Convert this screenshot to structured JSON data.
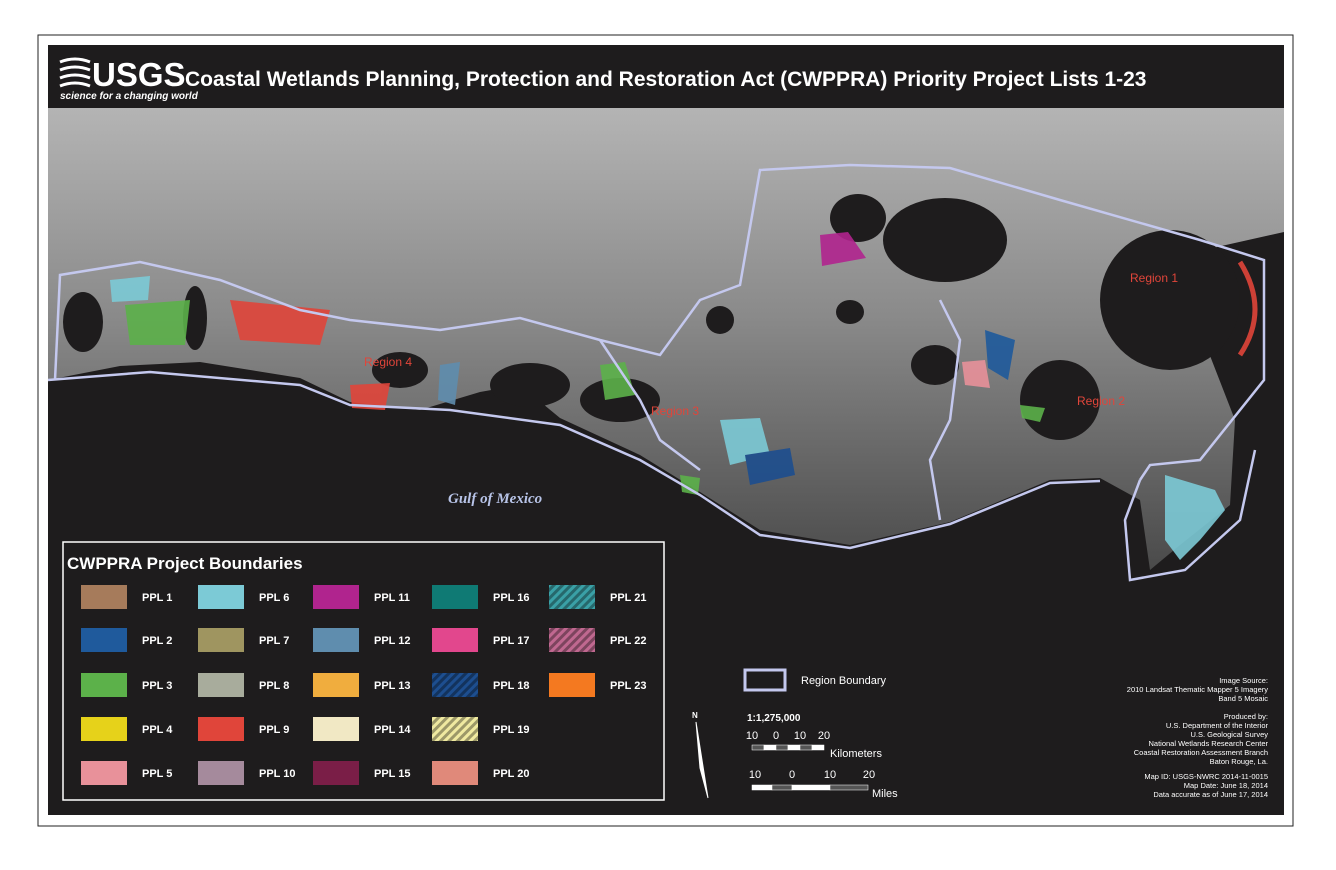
{
  "header": {
    "logo": "USGS",
    "tagline": "science for a changing world",
    "title": "Coastal Wetlands Planning,  Protection and Restoration Act (CWPPRA) Priority Project Lists 1-23"
  },
  "map_labels": {
    "region_1": "Region 1",
    "region_2": "Region 2",
    "region_3": "Region 3",
    "region_4": "Region 4",
    "gulf": "Gulf of Mexico"
  },
  "legend": {
    "title": "CWPPRA Project Boundaries",
    "items": [
      {
        "label": "PPL 1",
        "color": "#a67b5b"
      },
      {
        "label": "PPL 2",
        "color": "#1f5a9c"
      },
      {
        "label": "PPL 3",
        "color": "#5cb14a"
      },
      {
        "label": "PPL 4",
        "color": "#e6d21a"
      },
      {
        "label": "PPL 5",
        "color": "#e8919a"
      },
      {
        "label": "PPL 6",
        "color": "#7ccad6"
      },
      {
        "label": "PPL 7",
        "color": "#9f9560"
      },
      {
        "label": "PPL 8",
        "color": "#a8ac9c"
      },
      {
        "label": "PPL 9",
        "color": "#e0453a"
      },
      {
        "label": "PPL 10",
        "color": "#a58a9c"
      },
      {
        "label": "PPL 11",
        "color": "#b0248e"
      },
      {
        "label": "PPL 12",
        "color": "#5f8dae"
      },
      {
        "label": "PPL 13",
        "color": "#f0ad3e"
      },
      {
        "label": "PPL 14",
        "color": "#f1e8c4"
      },
      {
        "label": "PPL 15",
        "color": "#7a1e47"
      },
      {
        "label": "PPL 16",
        "color": "#0f7a74"
      },
      {
        "label": "PPL 17",
        "color": "#e2478d"
      },
      {
        "label": "PPL 18",
        "color": "#1d4e8f",
        "hatched": true
      },
      {
        "label": "PPL 19",
        "color": "#efe9a0",
        "hatched": true
      },
      {
        "label": "PPL 20",
        "color": "#e0897a"
      },
      {
        "label": "PPL 21",
        "color": "#3aa0a6",
        "hatched": true
      },
      {
        "label": "PPL 22",
        "color": "#c06890",
        "hatched": true
      },
      {
        "label": "PPL 23",
        "color": "#f47920"
      }
    ],
    "region_boundary": "Region Boundary"
  },
  "scale": {
    "north": "N",
    "ratio": "1:1,275,000",
    "km_ticks": [
      "10",
      "0",
      "10",
      "20"
    ],
    "km_unit": "Kilometers",
    "mi_ticks": [
      "10",
      "0",
      "10",
      "20"
    ],
    "mi_unit": "Miles"
  },
  "credits": {
    "source": [
      "Image Source:",
      "2010 Landsat Thematic Mapper 5 Imagery",
      "Band 5 Mosaic"
    ],
    "producer": [
      "Produced by:",
      "U.S. Department of the Interior",
      "U.S. Geological Survey",
      "National Wetlands Research Center",
      "Coastal Restoration Assessment Branch",
      "Baton Rouge, La."
    ],
    "info": [
      "Map ID:  USGS-NWRC 2014-11-0015",
      "Map Date:  June 18, 2014",
      "Data accurate as of June 17, 2014"
    ]
  }
}
